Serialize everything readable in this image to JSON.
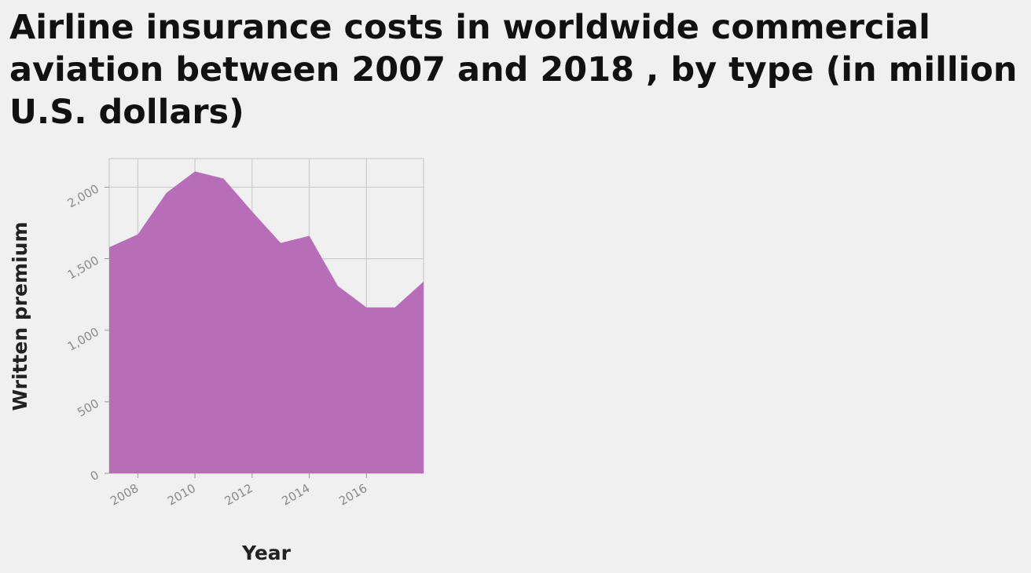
{
  "chart_data": {
    "type": "area",
    "title": "Airline insurance costs in worldwide commercial aviation between 2007 and 2018 , by type (in million U.S. dollars)",
    "xlabel": "Year",
    "ylabel": "Written premium",
    "x": [
      2007,
      2008,
      2009,
      2010,
      2011,
      2012,
      2013,
      2014,
      2015,
      2016,
      2017,
      2018
    ],
    "series": [
      {
        "values": [
          1580,
          1670,
          1960,
          2110,
          2060,
          1830,
          1610,
          1660,
          1310,
          1160,
          1160,
          1340
        ]
      }
    ],
    "xticks": [
      "2008",
      "2010",
      "2012",
      "2014",
      "2016"
    ],
    "yticks": [
      "0",
      "500",
      "1,000",
      "1,500",
      "2,000"
    ],
    "xlim": [
      2007,
      2018
    ],
    "ylim": [
      0,
      2200
    ],
    "grid": true,
    "colors": {
      "area": "#b76db7",
      "grid": "#cccccc",
      "background": "#f0f0f0"
    }
  }
}
